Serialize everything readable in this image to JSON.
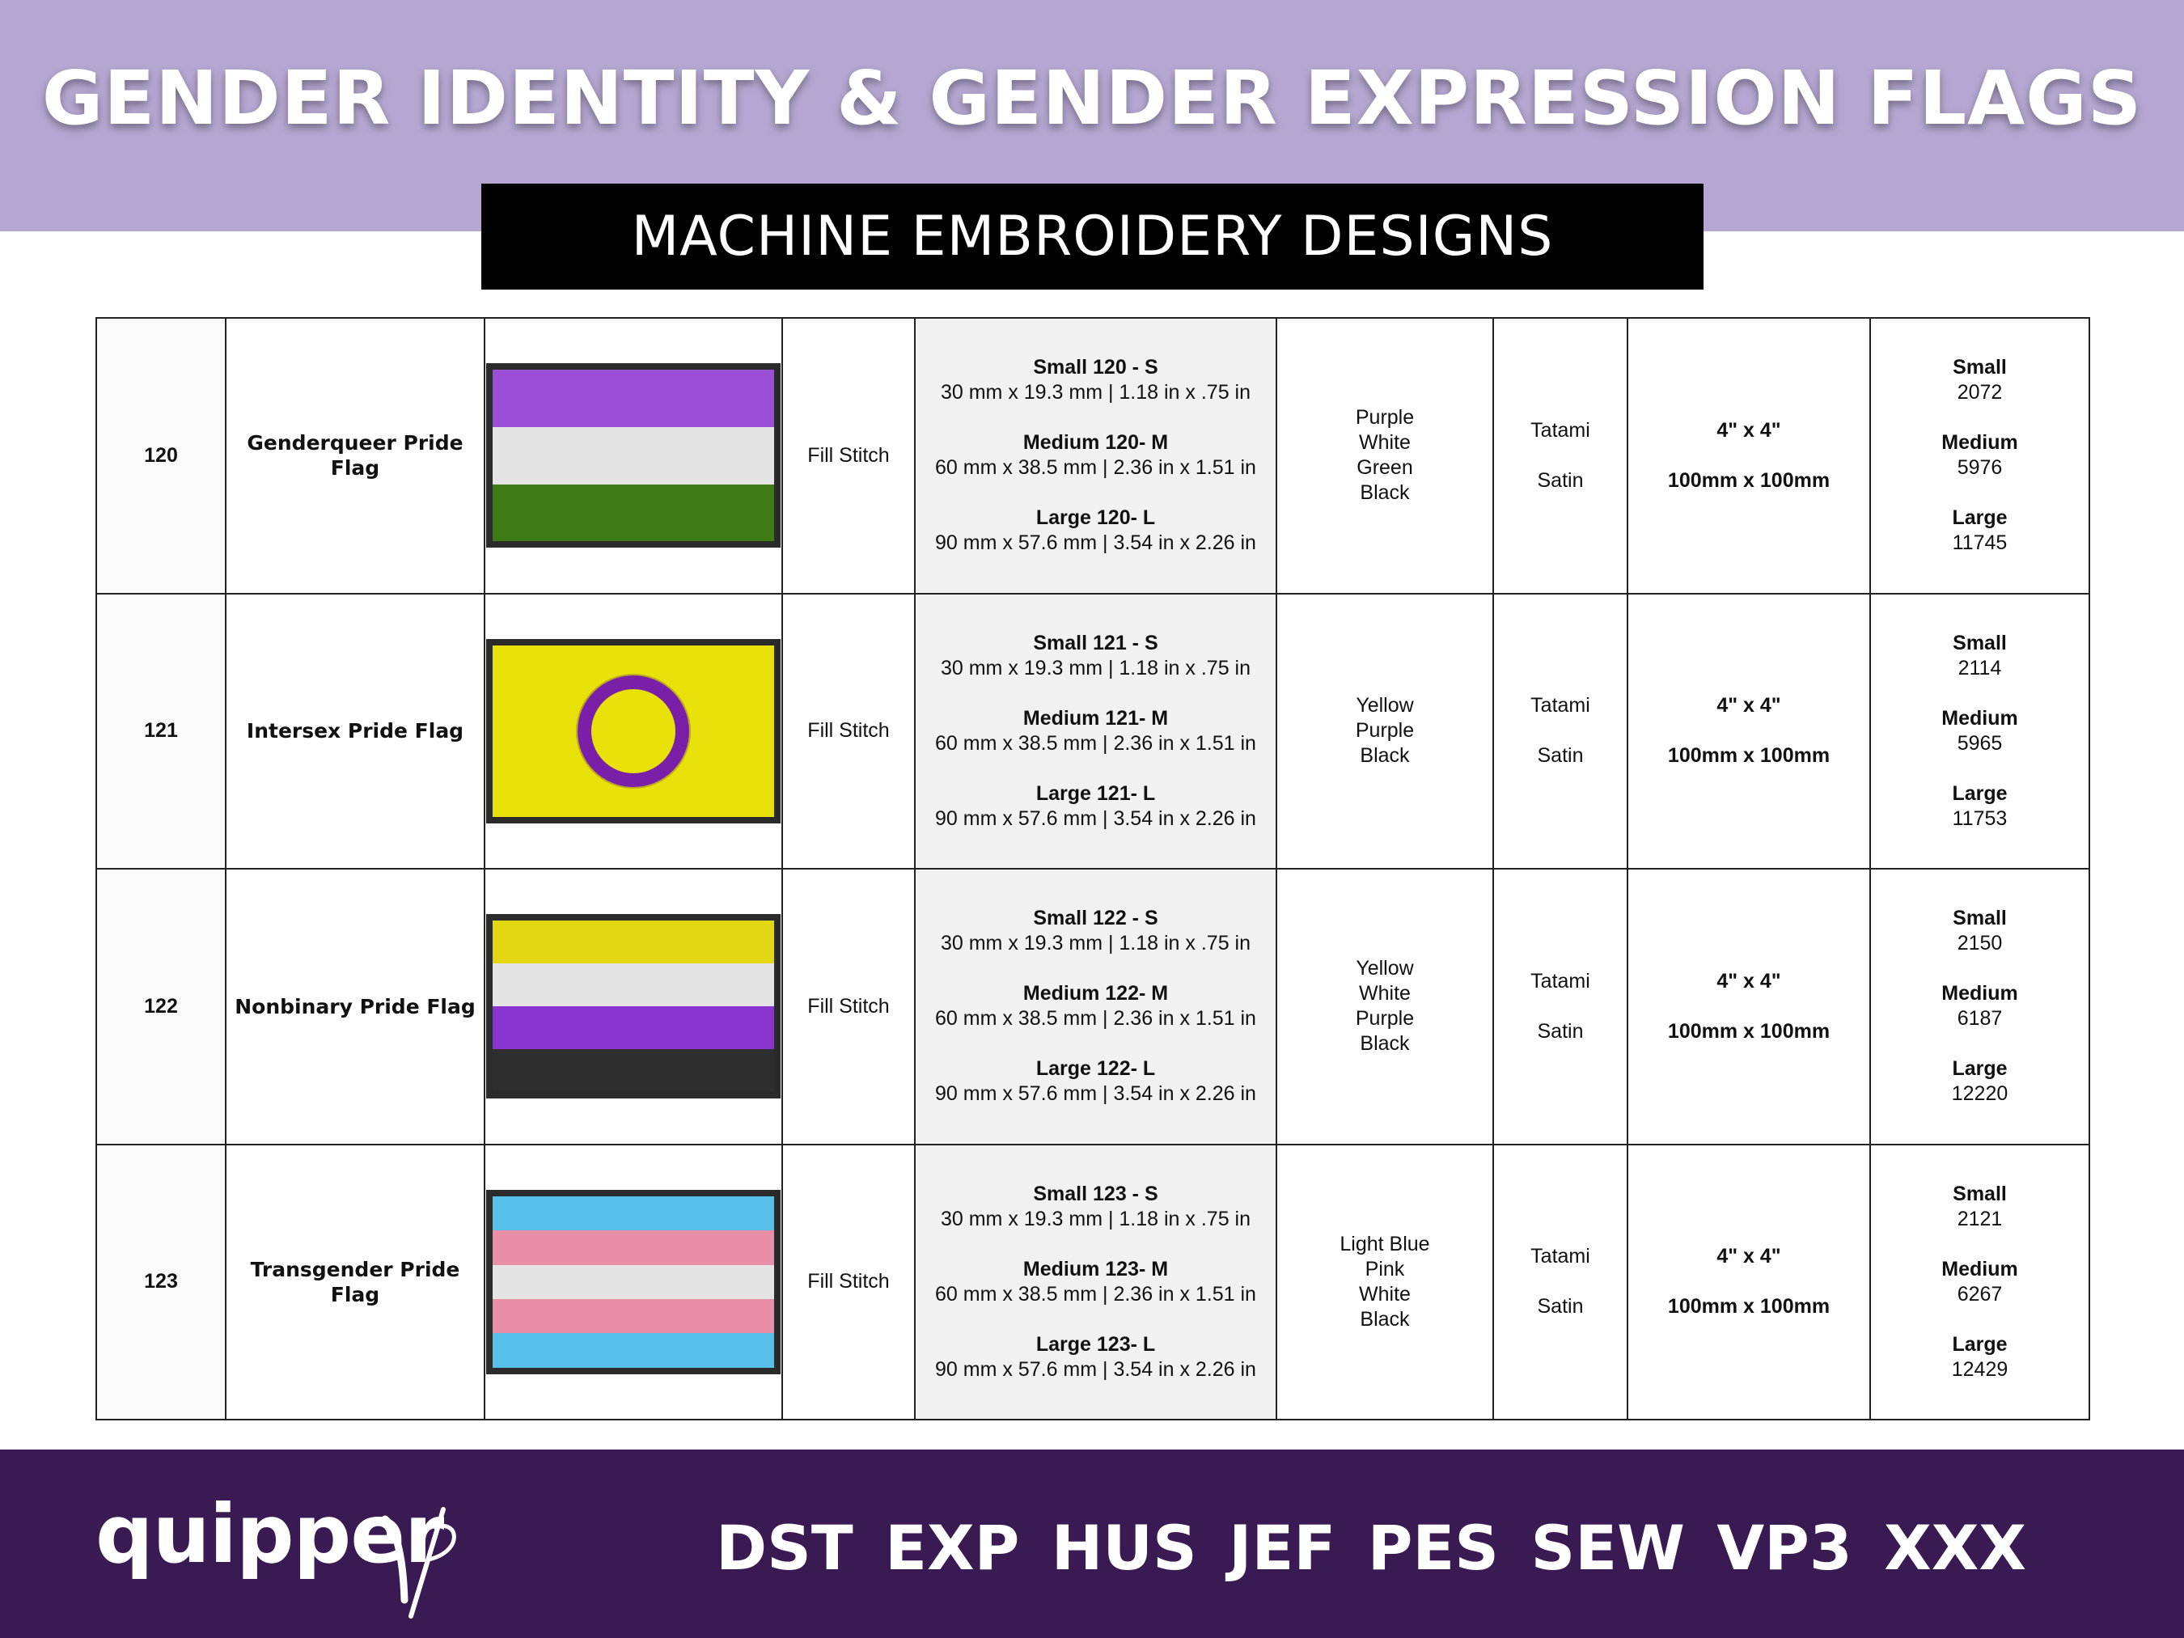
{
  "header": {
    "title": "GENDER IDENTITY & GENDER EXPRESSION FLAGS",
    "subtitle": "MACHINE EMBROIDERY DESIGNS"
  },
  "rows": [
    {
      "id": "120",
      "name": "Genderqueer Pride Flag",
      "stitch": "Fill Stitch",
      "flag_stripes": [
        "#9b4fd6",
        "#e4e4e4",
        "#3f7b16"
      ],
      "sizes": {
        "small_title": "Small  120 - S",
        "small_dims": "30 mm x 19.3 mm  | 1.18 in x .75 in",
        "medium_title": "Medium 120- M",
        "medium_dims": "60 mm x 38.5 mm | 2.36 in x 1.51 in",
        "large_title": "Large 120- L",
        "large_dims": "90 mm x 57.6 mm | 3.54 in x 2.26 in"
      },
      "colors": [
        "Purple",
        "White",
        "Green",
        "Black"
      ],
      "stitch_types": [
        "Tatami",
        "Satin"
      ],
      "hoop_in": "4\" x 4\"",
      "hoop_mm": "100mm x 100mm",
      "counts": {
        "small_label": "Small",
        "small": "2072",
        "medium_label": "Medium",
        "medium": "5976",
        "large_label": "Large",
        "large": "11745"
      }
    },
    {
      "id": "121",
      "name": "Intersex Pride Flag",
      "stitch": "Fill Stitch",
      "flag_background": "#e9e20a",
      "flag_ring": "#7a1fa8",
      "sizes": {
        "small_title": "Small  121 - S",
        "small_dims": "30 mm x 19.3 mm  | 1.18 in x .75 in",
        "medium_title": "Medium 121- M",
        "medium_dims": "60 mm x 38.5 mm | 2.36 in x 1.51 in",
        "large_title": "Large 121- L",
        "large_dims": "90 mm x 57.6 mm | 3.54 in x 2.26 in"
      },
      "colors": [
        "Yellow",
        "Purple",
        "Black"
      ],
      "stitch_types": [
        "Tatami",
        "Satin"
      ],
      "hoop_in": "4\" x 4\"",
      "hoop_mm": "100mm x 100mm",
      "counts": {
        "small_label": "Small",
        "small": "2114",
        "medium_label": "Medium",
        "medium": "5965",
        "large_label": "Large",
        "large": "11753"
      }
    },
    {
      "id": "122",
      "name": "Nonbinary Pride Flag",
      "stitch": "Fill Stitch",
      "flag_stripes": [
        "#e3d714",
        "#e4e4e4",
        "#8a35cf",
        "#2e2e2e"
      ],
      "sizes": {
        "small_title": "Small  122 - S",
        "small_dims": "30 mm x 19.3 mm  | 1.18 in x .75 in",
        "medium_title": "Medium 122- M",
        "medium_dims": "60 mm x 38.5 mm | 2.36 in x 1.51 in",
        "large_title": "Large 122- L",
        "large_dims": "90 mm x 57.6 mm | 3.54 in x 2.26 in"
      },
      "colors": [
        "Yellow",
        "White",
        "Purple",
        "Black"
      ],
      "stitch_types": [
        "Tatami",
        "Satin"
      ],
      "hoop_in": "4\" x 4\"",
      "hoop_mm": "100mm x 100mm",
      "counts": {
        "small_label": "Small",
        "small": "2150",
        "medium_label": "Medium",
        "medium": "6187",
        "large_label": "Large",
        "large": "12220"
      }
    },
    {
      "id": "123",
      "name": "Transgender Pride Flag",
      "stitch": "Fill Stitch",
      "flag_stripes": [
        "#56c0ea",
        "#e88ea8",
        "#e4e4e4",
        "#e88ea8",
        "#56c0ea"
      ],
      "sizes": {
        "small_title": "Small  123 - S",
        "small_dims": "30 mm x 19.3 mm  | 1.18 in x .75 in",
        "medium_title": "Medium 123- M",
        "medium_dims": "60 mm x 38.5 mm | 2.36 in x 1.51 in",
        "large_title": "Large 123- L",
        "large_dims": "90 mm x 57.6 mm | 3.54 in x 2.26 in"
      },
      "colors": [
        "Light Blue",
        "Pink",
        "White",
        "Black"
      ],
      "stitch_types": [
        "Tatami",
        "Satin"
      ],
      "hoop_in": "4\" x 4\"",
      "hoop_mm": "100mm x 100mm",
      "counts": {
        "small_label": "Small",
        "small": "2121",
        "medium_label": "Medium",
        "medium": "6267",
        "large_label": "Large",
        "large": "12429"
      }
    }
  ],
  "footer": {
    "logo": "quipper",
    "logo_icon": "needle-icon",
    "formats": [
      "DST",
      "EXP",
      "HUS",
      "JEF",
      "PES",
      "SEW",
      "VP3",
      "XXX"
    ]
  }
}
